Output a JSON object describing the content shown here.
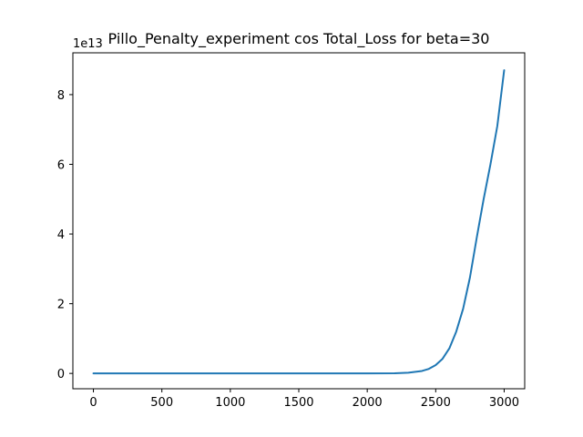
{
  "chart_data": {
    "type": "line",
    "title": "Pillo_Penalty_experiment cos Total_Loss for beta=30",
    "xlabel": "",
    "ylabel": "",
    "offset_label": "1e13",
    "xlim": [
      -150,
      3150
    ],
    "ylim": [
      -0.44,
      9.2
    ],
    "x_ticks": [
      0,
      500,
      1000,
      1500,
      2000,
      2500,
      3000
    ],
    "x_tick_labels": [
      "0",
      "500",
      "1000",
      "1500",
      "2000",
      "2500",
      "3000"
    ],
    "y_ticks": [
      0,
      2,
      4,
      6,
      8
    ],
    "y_tick_labels": [
      "0",
      "2",
      "4",
      "6",
      "8"
    ],
    "grid": false,
    "series": [
      {
        "color": "#1f77b4",
        "x": [
          0,
          500,
          1000,
          1500,
          2000,
          2200,
          2300,
          2400,
          2450,
          2500,
          2550,
          2600,
          2650,
          2700,
          2750,
          2800,
          2850,
          2900,
          2950,
          3000
        ],
        "y": [
          0,
          0,
          0,
          0,
          0,
          0.005,
          0.02,
          0.07,
          0.13,
          0.24,
          0.42,
          0.72,
          1.2,
          1.85,
          2.75,
          3.9,
          5.0,
          6.0,
          7.1,
          8.7
        ]
      }
    ]
  }
}
